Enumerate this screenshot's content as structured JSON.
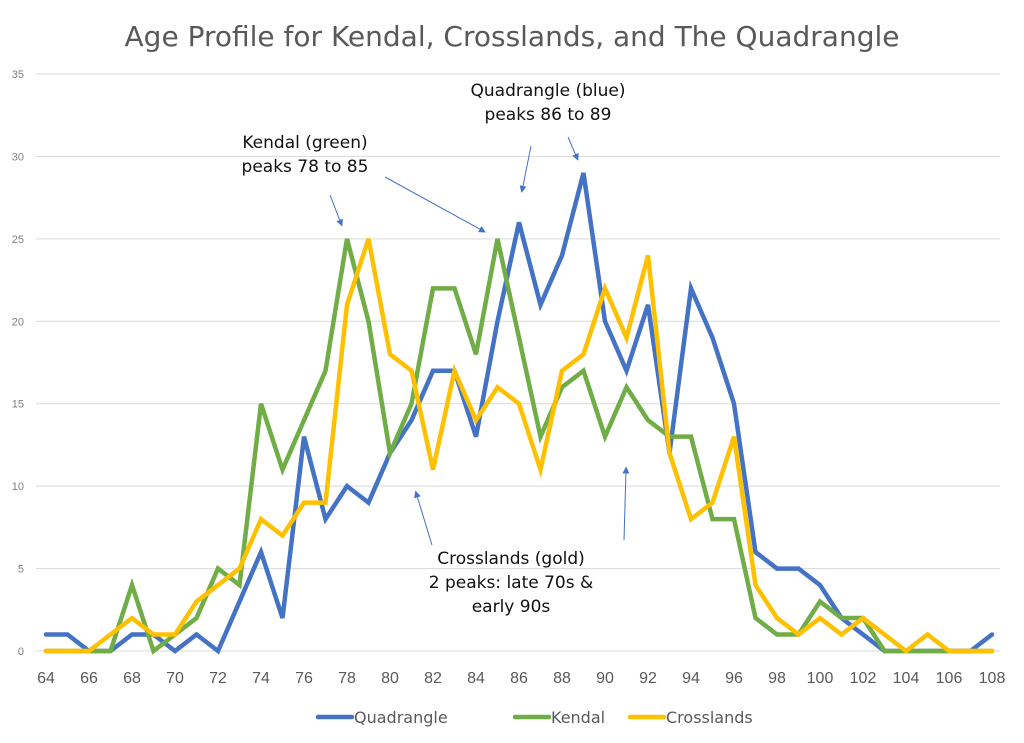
{
  "chart_data": {
    "type": "line",
    "title": "Age Profile for Kendal, Crosslands, and The Quadrangle",
    "xlabel": "",
    "ylabel": "",
    "x": [
      64,
      65,
      66,
      67,
      68,
      69,
      70,
      71,
      72,
      73,
      74,
      75,
      76,
      77,
      78,
      79,
      80,
      81,
      82,
      83,
      84,
      85,
      86,
      87,
      88,
      89,
      90,
      91,
      92,
      93,
      94,
      95,
      96,
      97,
      98,
      99,
      100,
      101,
      102,
      103,
      104,
      105,
      106,
      107,
      108
    ],
    "xticks": [
      "64",
      "66",
      "68",
      "70",
      "72",
      "74",
      "76",
      "78",
      "80",
      "82",
      "84",
      "86",
      "88",
      "90",
      "92",
      "94",
      "96",
      "98",
      "100",
      "102",
      "104",
      "106",
      "108"
    ],
    "xlim": [
      64,
      108
    ],
    "ylim": [
      0,
      35
    ],
    "yticks": [
      "0",
      "5",
      "10",
      "15",
      "20",
      "25",
      "30",
      "35"
    ],
    "grid": true,
    "legend_position": "bottom",
    "series": [
      {
        "name": "Quadrangle",
        "color": "#4472C4",
        "values": [
          1,
          1,
          0,
          0,
          1,
          1,
          0,
          1,
          0,
          3,
          6,
          2,
          13,
          8,
          10,
          9,
          12,
          14,
          17,
          17,
          13,
          20,
          26,
          21,
          24,
          29,
          20,
          17,
          21,
          12,
          22,
          19,
          15,
          6,
          5,
          5,
          4,
          2,
          1,
          0,
          0,
          0,
          0,
          0,
          1
        ]
      },
      {
        "name": "Kendal",
        "color": "#70AD47",
        "values": [
          0,
          0,
          0,
          0,
          4,
          0,
          1,
          2,
          5,
          4,
          15,
          11,
          14,
          17,
          25,
          20,
          12,
          15,
          22,
          22,
          18,
          25,
          19,
          13,
          16,
          17,
          13,
          16,
          14,
          13,
          13,
          8,
          8,
          2,
          1,
          1,
          3,
          2,
          2,
          0,
          0,
          0,
          0,
          0,
          0
        ]
      },
      {
        "name": "Crosslands",
        "color": "#FFC000",
        "values": [
          0,
          0,
          0,
          1,
          2,
          1,
          1,
          3,
          4,
          5,
          8,
          7,
          9,
          9,
          21,
          25,
          18,
          17,
          11,
          17,
          14,
          16,
          15,
          11,
          17,
          18,
          22,
          19,
          24,
          12,
          8,
          9,
          13,
          4,
          2,
          1,
          2,
          1,
          2,
          1,
          0,
          1,
          0,
          0,
          0
        ]
      }
    ],
    "annotations": [
      {
        "lines": [
          "Kendal (green)",
          "peaks 78 to 85"
        ],
        "arrow_targets": [
          [
            78,
            25
          ],
          [
            85,
            25
          ]
        ]
      },
      {
        "lines": [
          "Quadrangle (blue)",
          "peaks 86 to 89"
        ],
        "arrow_targets": [
          [
            86,
            27
          ],
          [
            89,
            29
          ]
        ]
      },
      {
        "lines": [
          "Crosslands (gold)",
          "2 peaks: late 70s &",
          "early 90s"
        ],
        "arrow_targets": [
          [
            81,
            10.5
          ],
          [
            91,
            12
          ]
        ]
      }
    ]
  }
}
